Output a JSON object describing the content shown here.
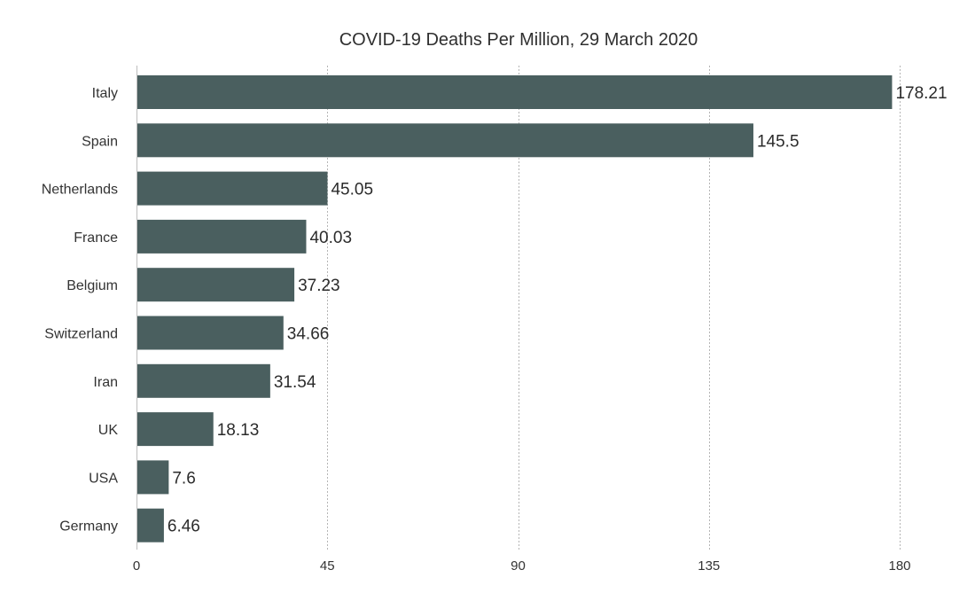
{
  "chart_data": {
    "type": "bar",
    "orientation": "horizontal",
    "title": "COVID-19 Deaths Per Million, 29 March 2020",
    "xlabel": "",
    "ylabel": "",
    "categories": [
      "Italy",
      "Spain",
      "Netherlands",
      "France",
      "Belgium",
      "Switzerland",
      "Iran",
      "UK",
      "USA",
      "Germany"
    ],
    "values": [
      178.21,
      145.5,
      45.05,
      40.03,
      37.23,
      34.66,
      31.54,
      18.13,
      7.6,
      6.46
    ],
    "value_labels": [
      "178.21",
      "145.5",
      "45.05",
      "40.03",
      "37.23",
      "34.66",
      "31.54",
      "18.13",
      "7.6",
      "6.46"
    ],
    "xlim": [
      0,
      180
    ],
    "xticks": [
      0,
      45,
      90,
      135,
      180
    ],
    "xtick_labels": [
      "0",
      "45",
      "90",
      "135",
      "180"
    ],
    "grid": "vertical-dotted",
    "legend": "none",
    "bar_color": "#4a5f5f"
  }
}
